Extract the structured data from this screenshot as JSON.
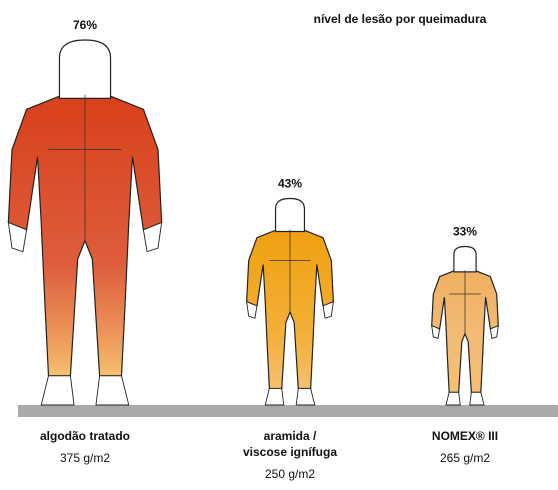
{
  "chart_data": {
    "type": "pictograph",
    "title": "nível de lesão por queimadura",
    "categories": [
      [
        "algodão tratado"
      ],
      [
        "aramida /",
        "viscose ignífuga"
      ],
      [
        "NOMEX® III"
      ]
    ],
    "weights": [
      "375 g/m2",
      "250 g/m2",
      "265 g/m2"
    ],
    "values": [
      76,
      43,
      33
    ],
    "value_labels": [
      "76%",
      "43%",
      "33%"
    ],
    "colors": [
      "#d8401a",
      "#f0a010",
      "#f0b060"
    ]
  }
}
